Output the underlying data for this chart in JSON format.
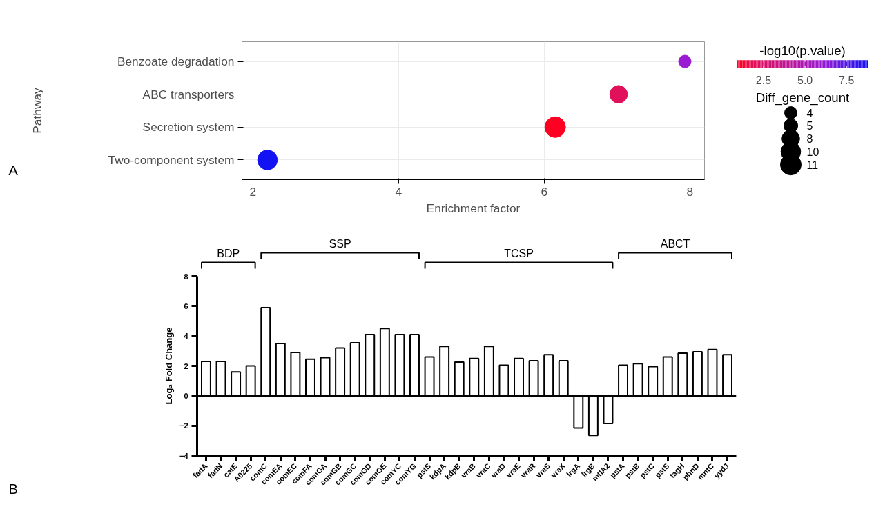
{
  "chart_data": [
    {
      "type": "bubble",
      "orientation": "horizontal",
      "xlabel": "Enrichment factor",
      "ylabel": "Pathway",
      "clabel": "-log10(p.value)",
      "legend_title": "Diff_gene_count",
      "categories": [
        "Benzoate degradation",
        "ABC transporters",
        "Secretion system",
        "Two-component system"
      ],
      "values": [
        7.93,
        7.02,
        6.15,
        2.2
      ],
      "sizes": [
        4,
        8,
        11,
        10
      ],
      "size_legend": [
        4,
        5,
        8,
        10,
        11
      ],
      "cvalues": [
        6.0,
        2.0,
        0.9,
        8.8
      ],
      "colors": [
        "#9b1bd2",
        "#e0115a",
        "#ff0022",
        "#1212f2"
      ],
      "clim": [
        0.9,
        8.8
      ],
      "cticks": [
        2.5,
        {
          "value": 5,
          "label": "5.0"
        },
        7.5
      ],
      "xlim": [
        1.85,
        8.2
      ],
      "xticks": [
        2,
        4,
        6,
        8
      ],
      "grid": true,
      "annotations": [
        "A"
      ]
    },
    {
      "type": "bar",
      "ylabel": "Log₂ Fold Change",
      "color": "#ffffff",
      "categories": [
        "fadA",
        "fadN",
        "catE",
        "A0225",
        "comC",
        "comEA",
        "comEC",
        "comFA",
        "comGA",
        "comGB",
        "comGC",
        "comGD",
        "comGE",
        "comYC",
        "comYG",
        "pstS",
        "kdpA",
        "kdpB",
        "vraB",
        "vraC",
        "vraD",
        "vraE",
        "vraR",
        "vraS",
        "vraX",
        "lrgA",
        "lrgB",
        "mtlA2",
        "pstA",
        "pstB",
        "pstC",
        "pstS",
        "tagH",
        "phnD",
        "mntC",
        "yydJ"
      ],
      "values": [
        2.3,
        2.3,
        1.6,
        2.0,
        5.9,
        3.5,
        2.9,
        2.45,
        2.55,
        3.2,
        3.55,
        4.1,
        4.5,
        4.1,
        4.1,
        2.6,
        3.3,
        2.25,
        2.5,
        3.3,
        2.05,
        2.5,
        2.35,
        2.75,
        2.35,
        -2.15,
        -2.65,
        -1.85,
        2.05,
        2.15,
        1.95,
        2.6,
        2.85,
        2.95,
        3.1,
        2.75
      ],
      "ylim": [
        -4,
        8
      ],
      "yticks": [
        -4,
        -2,
        0,
        2,
        4,
        6,
        8
      ],
      "grid": false,
      "ref_lines": [
        {
          "axis": "y",
          "value": 0,
          "color": "#000000"
        }
      ],
      "annotations": [
        "BDP",
        "SSP",
        "TCSP",
        "ABCT",
        "B"
      ]
    }
  ]
}
